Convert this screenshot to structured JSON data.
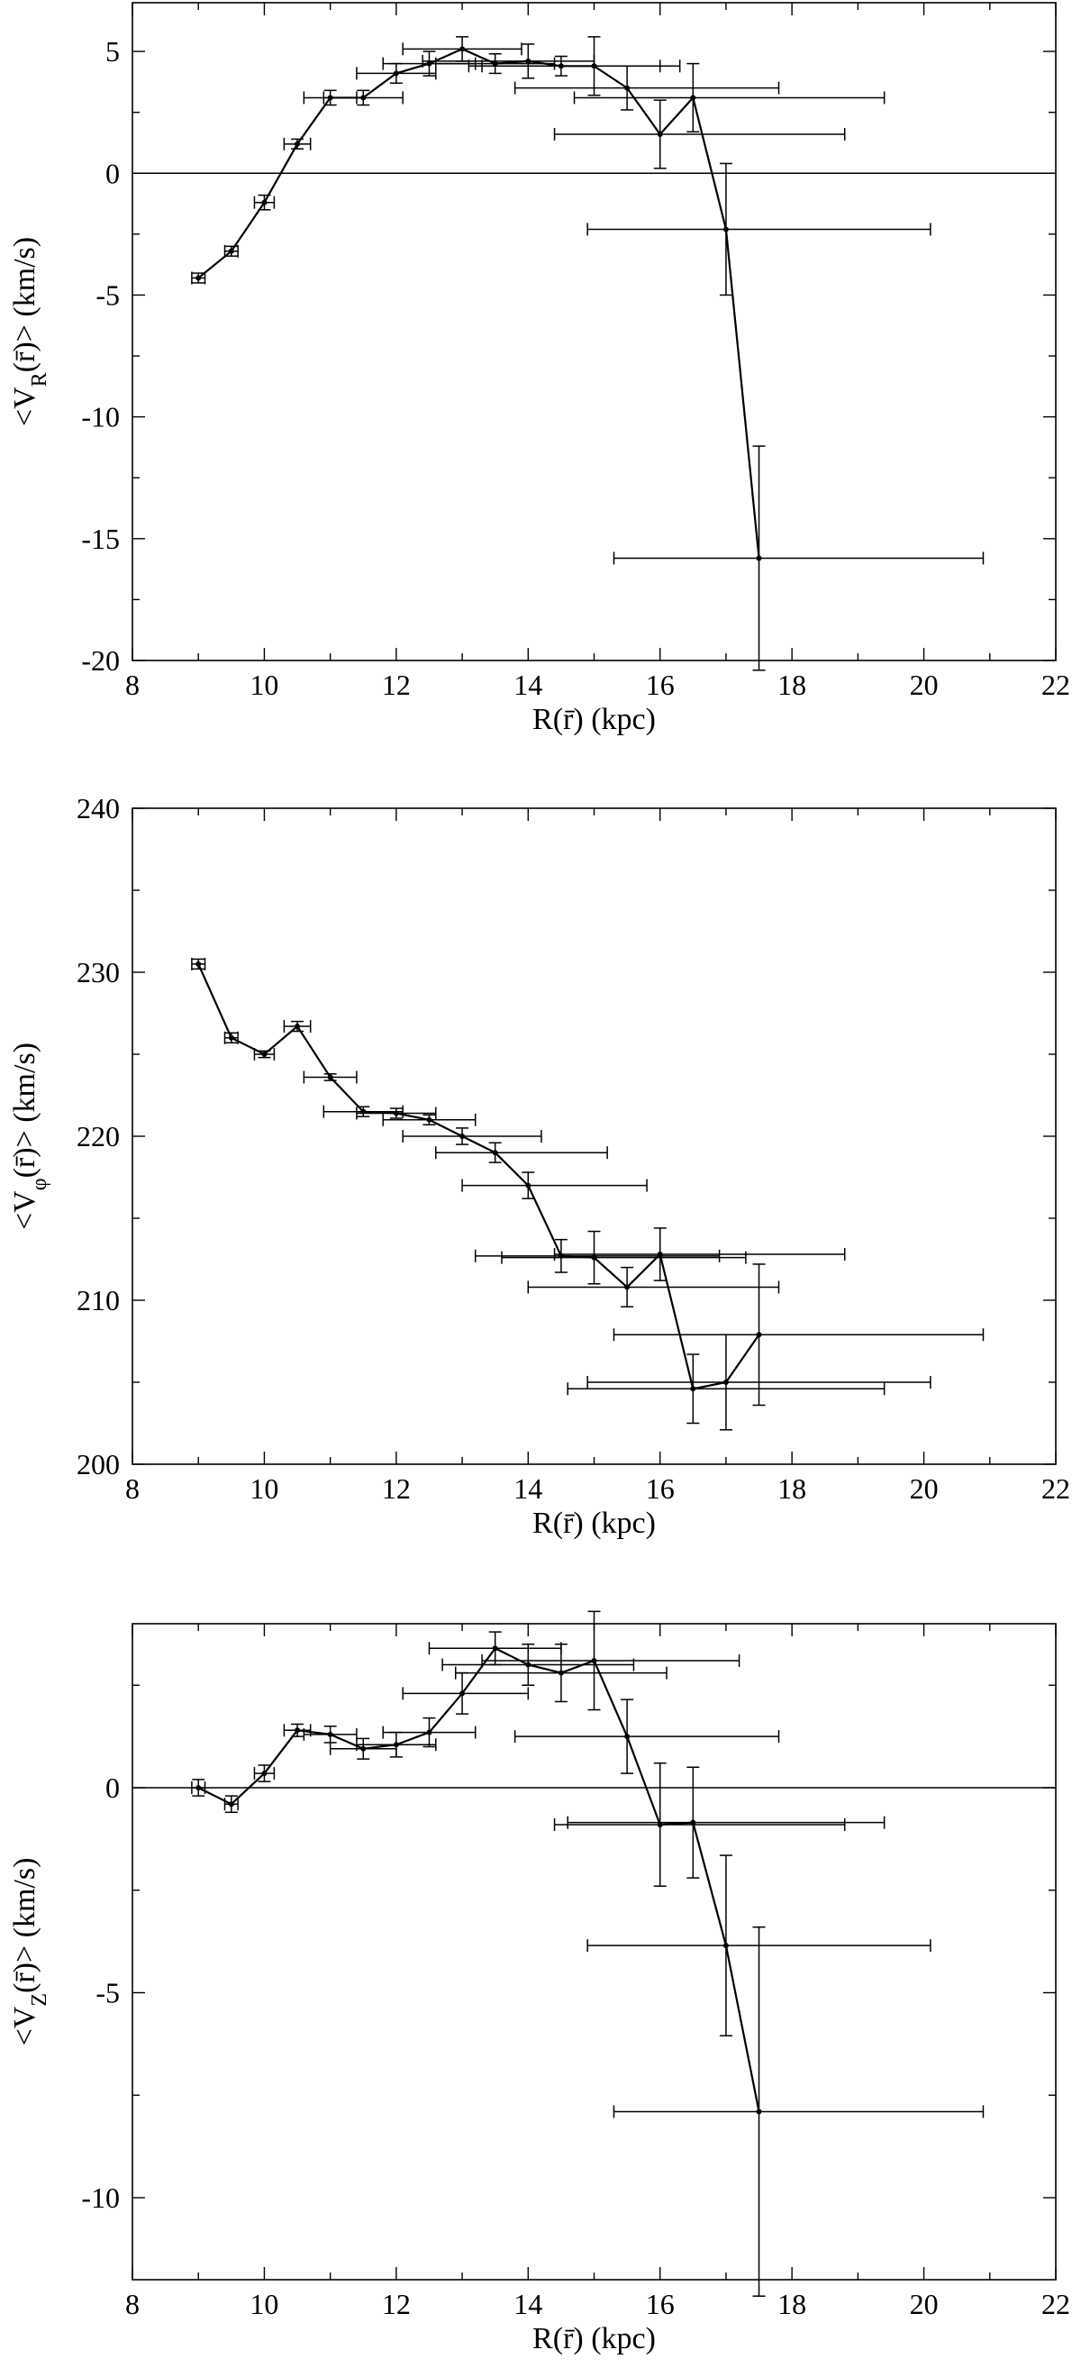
{
  "chart_data": [
    {
      "type": "line",
      "title": "",
      "xlabel": "R(r̄) (kpc)",
      "ylabel": "<V_R(r̄)> (km/s)",
      "xlim": [
        8,
        22
      ],
      "ylim": [
        -20,
        7
      ],
      "xticks": [
        8,
        10,
        12,
        14,
        16,
        18,
        20,
        22
      ],
      "yticks": [
        -20,
        -15,
        -10,
        -5,
        0,
        5
      ],
      "zero_line": true,
      "grid": false,
      "series": [
        {
          "x": [
            9.0,
            9.5,
            10.0,
            10.5,
            11.0,
            11.5,
            12.0,
            12.5,
            13.0,
            13.5,
            14.0,
            14.5,
            15.0,
            15.5,
            16.0,
            16.5,
            17.0,
            17.5
          ],
          "y": [
            -4.3,
            -3.2,
            -1.2,
            1.2,
            3.1,
            3.1,
            4.1,
            4.5,
            5.1,
            4.5,
            4.6,
            4.4,
            4.4,
            3.5,
            1.6,
            3.1,
            -2.3,
            -15.8
          ],
          "xerr_lo": [
            0.1,
            0.1,
            0.15,
            0.2,
            0.4,
            0.6,
            0.6,
            0.7,
            0.9,
            0.9,
            1.6,
            1.4,
            1.7,
            1.7,
            1.6,
            1.8,
            2.1,
            2.2
          ],
          "xerr_hi": [
            0.1,
            0.1,
            0.15,
            0.2,
            0.4,
            0.6,
            0.6,
            0.7,
            0.9,
            0.9,
            1.0,
            1.8,
            1.0,
            2.3,
            2.8,
            2.9,
            3.1,
            3.4
          ],
          "yerr": [
            0.2,
            0.2,
            0.3,
            0.2,
            0.3,
            0.3,
            0.4,
            0.5,
            0.5,
            0.4,
            0.7,
            0.4,
            1.2,
            0.9,
            1.4,
            1.4,
            2.7,
            4.6
          ]
        }
      ]
    },
    {
      "type": "line",
      "title": "",
      "xlabel": "R(r̄) (kpc)",
      "ylabel": "<V_φ(r̄)> (km/s)",
      "xlim": [
        8,
        22
      ],
      "ylim": [
        200,
        240
      ],
      "xticks": [
        8,
        10,
        12,
        14,
        16,
        18,
        20,
        22
      ],
      "yticks": [
        200,
        210,
        220,
        230,
        240
      ],
      "zero_line": false,
      "grid": false,
      "series": [
        {
          "x": [
            9.0,
            9.5,
            10.0,
            10.5,
            11.0,
            11.5,
            12.0,
            12.5,
            13.0,
            13.5,
            14.0,
            14.5,
            15.0,
            15.5,
            16.0,
            16.5,
            17.0,
            17.5
          ],
          "y": [
            230.5,
            226.0,
            225.0,
            226.7,
            223.6,
            221.5,
            221.4,
            221.0,
            220.0,
            219.0,
            217.0,
            212.7,
            212.6,
            210.8,
            212.8,
            204.6,
            205.0,
            207.9
          ],
          "xerr_lo": [
            0.1,
            0.1,
            0.15,
            0.2,
            0.4,
            0.6,
            0.6,
            0.7,
            0.9,
            0.9,
            1.0,
            1.3,
            1.4,
            1.5,
            1.6,
            1.9,
            2.1,
            2.2
          ],
          "xerr_hi": [
            0.1,
            0.1,
            0.15,
            0.2,
            0.4,
            0.6,
            0.6,
            0.7,
            1.2,
            1.7,
            1.8,
            2.4,
            2.3,
            2.3,
            2.8,
            2.9,
            3.1,
            3.4
          ],
          "yerr": [
            0.3,
            0.3,
            0.2,
            0.3,
            0.2,
            0.3,
            0.3,
            0.3,
            0.5,
            0.6,
            0.8,
            1.0,
            1.6,
            1.2,
            1.6,
            2.1,
            2.9,
            4.3
          ]
        }
      ]
    },
    {
      "type": "line",
      "title": "",
      "xlabel": "R(r̄) (kpc)",
      "ylabel": "<V_Z(r̄)> (km/s)",
      "xlim": [
        8,
        22
      ],
      "ylim": [
        -12,
        4
      ],
      "xticks": [
        8,
        10,
        12,
        14,
        16,
        18,
        20,
        22
      ],
      "yticks": [
        -10,
        -5,
        0
      ],
      "zero_line": true,
      "grid": false,
      "series": [
        {
          "x": [
            9.0,
            9.5,
            10.0,
            10.5,
            11.0,
            11.5,
            12.0,
            12.5,
            13.0,
            13.5,
            14.0,
            14.5,
            15.0,
            15.5,
            16.0,
            16.5,
            17.0,
            17.5
          ],
          "y": [
            0.0,
            -0.4,
            0.35,
            1.4,
            1.3,
            0.95,
            1.05,
            1.35,
            2.3,
            3.4,
            3.0,
            2.8,
            3.1,
            1.25,
            -0.9,
            -0.85,
            -3.85,
            -7.9
          ],
          "xerr_lo": [
            0.1,
            0.1,
            0.15,
            0.2,
            0.4,
            0.5,
            0.6,
            0.7,
            0.9,
            1.0,
            1.3,
            1.6,
            1.7,
            1.7,
            1.6,
            1.9,
            2.1,
            2.2
          ],
          "xerr_hi": [
            0.1,
            0.1,
            0.15,
            0.2,
            0.4,
            0.5,
            0.6,
            0.7,
            1.0,
            1.0,
            1.6,
            1.6,
            2.2,
            2.3,
            2.8,
            2.9,
            3.1,
            3.4
          ],
          "yerr": [
            0.2,
            0.2,
            0.2,
            0.15,
            0.2,
            0.25,
            0.3,
            0.35,
            0.5,
            0.4,
            0.5,
            0.7,
            1.2,
            0.9,
            1.5,
            1.35,
            2.2,
            4.5
          ]
        }
      ]
    }
  ]
}
